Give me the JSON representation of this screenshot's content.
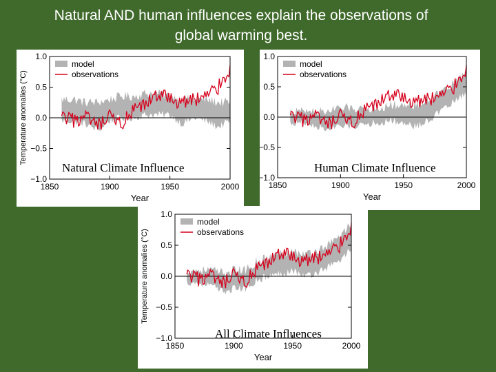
{
  "slide": {
    "title_line1": "Natural AND human influences explain the observations of",
    "title_line2": "global warming best."
  },
  "colors": {
    "background": "#3f6a2b",
    "model_band": "#b3b3b3",
    "observations": "#d6001c",
    "zero_line": "#000000"
  },
  "chart_data": [
    {
      "type": "area",
      "caption": "Natural Climate Influence",
      "xlabel": "Year",
      "ylabel": "Temperature anomalies (°C)",
      "xlim": [
        1850,
        2000
      ],
      "ylim": [
        -1.0,
        1.0
      ],
      "xticks": [
        1850,
        1900,
        1950,
        2000
      ],
      "yticks": [
        -1.0,
        -0.5,
        0.0,
        0.5,
        1.0
      ],
      "xtick_labels": [
        "1850",
        "1900",
        "1950",
        "2000"
      ],
      "ytick_labels": [
        "−1.0",
        "−0.5",
        "0.0",
        "0.5",
        "1.0"
      ],
      "legend": [
        "model",
        "observations"
      ],
      "legend_position": "top-left",
      "x": [
        1860,
        1870,
        1880,
        1890,
        1900,
        1910,
        1920,
        1930,
        1940,
        1950,
        1960,
        1970,
        1980,
        1990,
        2000
      ],
      "model_upper": [
        0.3,
        0.3,
        0.25,
        0.25,
        0.3,
        0.35,
        0.35,
        0.4,
        0.4,
        0.35,
        0.3,
        0.3,
        0.3,
        0.25,
        0.25
      ],
      "model_lower": [
        -0.05,
        -0.05,
        -0.1,
        -0.2,
        -0.05,
        0.0,
        0.0,
        0.05,
        0.05,
        0.05,
        -0.1,
        0.0,
        -0.05,
        -0.15,
        -0.05
      ],
      "observations": [
        0.0,
        -0.05,
        0.0,
        -0.15,
        0.0,
        -0.1,
        0.1,
        0.2,
        0.4,
        0.3,
        0.25,
        0.3,
        0.35,
        0.5,
        0.8
      ]
    },
    {
      "type": "area",
      "caption": "Human Climate Influence",
      "xlabel": "Year",
      "ylabel": "",
      "xlim": [
        1850,
        2000
      ],
      "ylim": [
        -1.0,
        1.0
      ],
      "xticks": [
        1850,
        1900,
        1950,
        2000
      ],
      "yticks": [
        -1.0,
        -0.5,
        0.0,
        0.5,
        1.0
      ],
      "xtick_labels": [
        "1850",
        "1900",
        "1950",
        "2000"
      ],
      "ytick_labels": [
        "−1.0",
        "−0.5",
        "0.0",
        "0.5",
        "1.0"
      ],
      "legend": [
        "model",
        "observations"
      ],
      "legend_position": "top-left",
      "x": [
        1860,
        1870,
        1880,
        1890,
        1900,
        1910,
        1920,
        1930,
        1940,
        1950,
        1960,
        1970,
        1980,
        1990,
        2000
      ],
      "model_upper": [
        0.1,
        0.1,
        0.1,
        0.1,
        0.15,
        0.15,
        0.15,
        0.15,
        0.2,
        0.2,
        0.2,
        0.3,
        0.4,
        0.55,
        0.75
      ],
      "model_lower": [
        -0.1,
        -0.1,
        -0.15,
        -0.2,
        -0.15,
        -0.15,
        -0.1,
        -0.1,
        -0.05,
        -0.1,
        -0.15,
        -0.05,
        0.1,
        0.25,
        0.4
      ],
      "observations": [
        0.0,
        -0.05,
        0.0,
        -0.15,
        0.0,
        -0.1,
        0.1,
        0.2,
        0.4,
        0.3,
        0.25,
        0.3,
        0.35,
        0.5,
        0.8
      ]
    },
    {
      "type": "area",
      "caption": "All Climate Influences",
      "xlabel": "Year",
      "ylabel": "Temperature anomalies (°C)",
      "xlim": [
        1850,
        2000
      ],
      "ylim": [
        -1.0,
        1.0
      ],
      "xticks": [
        1850,
        1900,
        1950,
        2000
      ],
      "yticks": [
        -1.0,
        -0.5,
        0.0,
        0.5,
        1.0
      ],
      "xtick_labels": [
        "1850",
        "1900",
        "1950",
        "2000"
      ],
      "ytick_labels": [
        "−1.0",
        "−0.5",
        "0.0",
        "0.5",
        "1.0"
      ],
      "legend": [
        "model",
        "observations"
      ],
      "legend_position": "top-left",
      "x": [
        1860,
        1870,
        1880,
        1890,
        1900,
        1910,
        1920,
        1930,
        1940,
        1950,
        1960,
        1970,
        1980,
        1990,
        2000
      ],
      "model_upper": [
        0.1,
        0.1,
        0.1,
        0.05,
        0.1,
        0.1,
        0.25,
        0.3,
        0.4,
        0.4,
        0.35,
        0.4,
        0.5,
        0.65,
        0.85
      ],
      "model_lower": [
        -0.1,
        -0.1,
        -0.15,
        -0.25,
        -0.2,
        -0.2,
        -0.05,
        0.0,
        0.05,
        0.1,
        0.0,
        0.05,
        0.15,
        0.25,
        0.45
      ],
      "observations": [
        0.0,
        -0.05,
        0.0,
        -0.15,
        0.0,
        -0.1,
        0.1,
        0.2,
        0.4,
        0.3,
        0.25,
        0.3,
        0.35,
        0.5,
        0.8
      ]
    }
  ]
}
